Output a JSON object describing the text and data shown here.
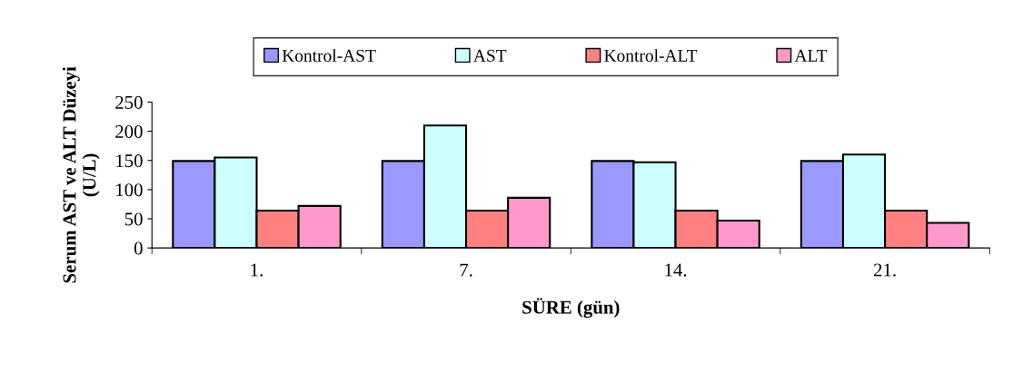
{
  "chart_data": {
    "type": "bar",
    "xlabel": "SÜRE (gün)",
    "ylabel": "Serum AST ve ALT Düzeyi\n(U/L)",
    "categories": [
      "1.",
      "7.",
      "14.",
      "21."
    ],
    "series": [
      {
        "name": "Kontrol-AST",
        "color": "#9999ff",
        "values": [
          149,
          149,
          149,
          149
        ]
      },
      {
        "name": "AST",
        "color": "#ccffff",
        "values": [
          155,
          210,
          147,
          160
        ]
      },
      {
        "name": "Kontrol-ALT",
        "color": "#ff8080",
        "values": [
          64,
          64,
          64,
          64
        ]
      },
      {
        "name": "ALT",
        "color": "#ff99cc",
        "values": [
          72,
          86,
          47,
          43
        ]
      }
    ],
    "ylim": [
      0,
      250
    ],
    "yticks": [
      0,
      50,
      100,
      150,
      200,
      250
    ],
    "grid": false,
    "legend": "top"
  }
}
